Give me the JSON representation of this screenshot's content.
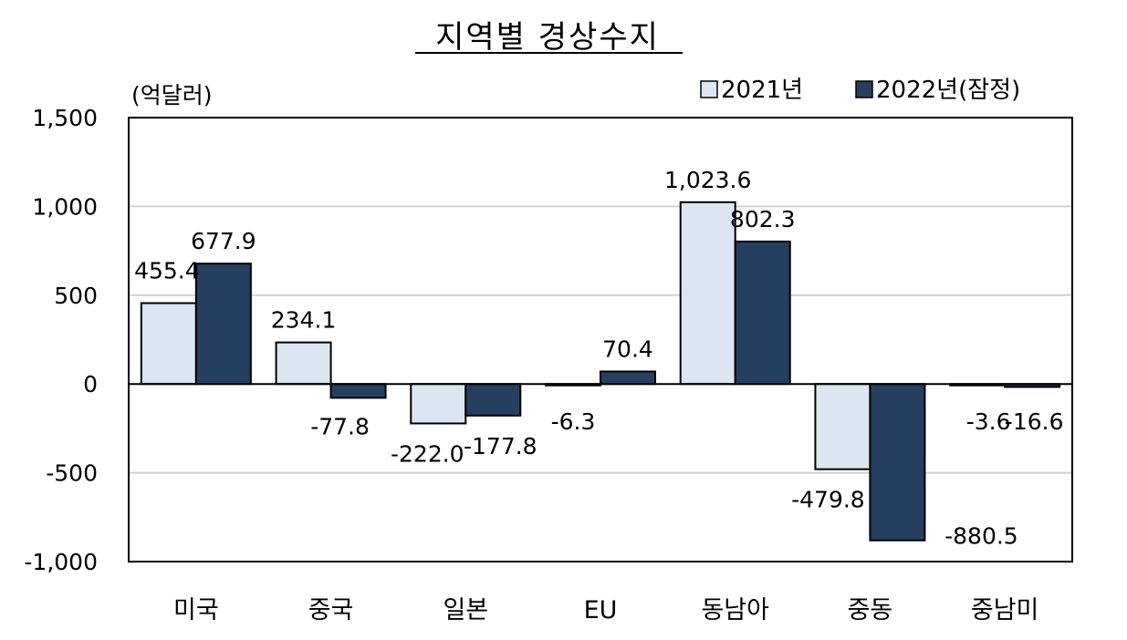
{
  "chart_data": {
    "type": "bar",
    "title": "지역별 경상수지",
    "unit_label": "(억달러)",
    "categories": [
      "미국",
      "중국",
      "일본",
      "EU",
      "동남아",
      "중동",
      "중남미"
    ],
    "series": [
      {
        "name": "2021년",
        "color": "#dce6f2",
        "values": [
          455.4,
          234.1,
          -222.0,
          -6.3,
          1023.6,
          -479.8,
          -3.6
        ],
        "labels": [
          "455.4",
          "234.1",
          "-222.0",
          "-6.3",
          "1,023.6",
          "-479.8",
          "-3.6"
        ]
      },
      {
        "name": "2022년(잠정)",
        "color": "#243f60",
        "values": [
          677.9,
          -77.8,
          -177.8,
          70.4,
          802.3,
          -880.5,
          -16.6
        ],
        "labels": [
          "677.9",
          "-77.8",
          "-177.8",
          "70.4",
          "802.3",
          "-880.5",
          "-16.6"
        ]
      }
    ],
    "ylim": [
      -1000,
      1500
    ],
    "yticks": [
      -1000,
      -500,
      0,
      500,
      1000,
      1500
    ],
    "ytick_labels": [
      "-1,000",
      "-500",
      "0",
      "500",
      "1,000",
      "1,500"
    ],
    "grid": true,
    "legend": "top-right"
  }
}
